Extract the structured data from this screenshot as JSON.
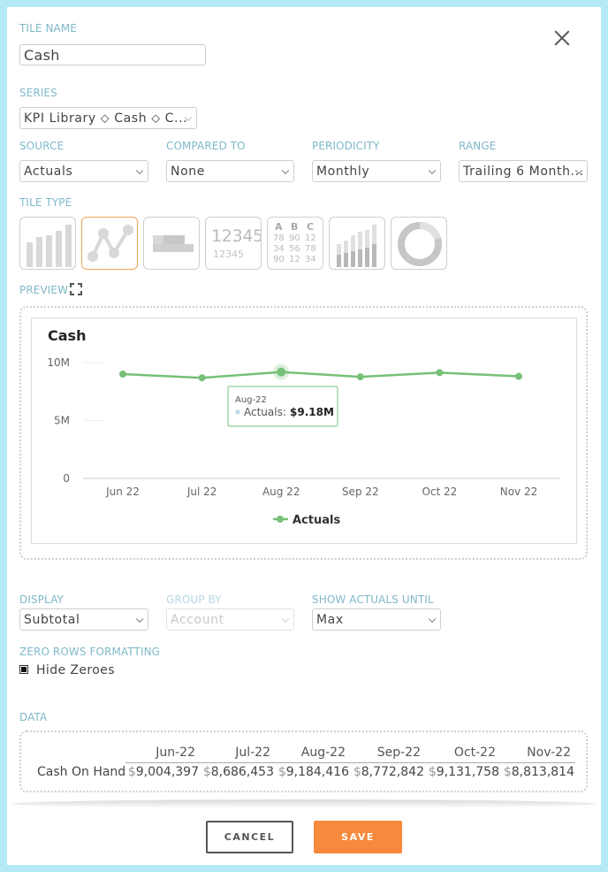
{
  "tile_name": {
    "label": "TILE NAME",
    "value": "Cash"
  },
  "series": {
    "label": "SERIES",
    "value": "KPI Library ⬦ Cash ⬦ C..."
  },
  "source": {
    "label": "SOURCE",
    "value": "Actuals"
  },
  "compared_to": {
    "label": "COMPARED TO",
    "value": "None"
  },
  "periodicity": {
    "label": "PERIODICITY",
    "value": "Monthly"
  },
  "range": {
    "label": "RANGE",
    "value": "Trailing 6 Month..."
  },
  "tile_type": {
    "label": "TILE TYPE",
    "number_tile_big": "12345",
    "number_tile_small": "12345",
    "table_tile": {
      "headers": [
        "A",
        "B",
        "C"
      ],
      "rows": [
        [
          "78",
          "90",
          "12"
        ],
        [
          "34",
          "56",
          "78"
        ],
        [
          "90",
          "12",
          "34"
        ]
      ]
    }
  },
  "preview": {
    "label": "PREVIEW"
  },
  "tooltip": {
    "period": "Aug-22",
    "series": "Actuals:",
    "value": "$9.18M"
  },
  "display": {
    "label": "DISPLAY",
    "value": "Subtotal"
  },
  "group_by": {
    "label": "GROUP BY",
    "value": "Account"
  },
  "show_actuals_until": {
    "label": "SHOW ACTUALS UNTIL",
    "value": "Max"
  },
  "zero_rows": {
    "label": "ZERO ROWS FORMATTING",
    "checkbox_label": "Hide Zeroes",
    "checked": true
  },
  "data_section": {
    "label": "DATA",
    "columns": [
      "Jun-22",
      "Jul-22",
      "Aug-22",
      "Sep-22",
      "Oct-22",
      "Nov-22"
    ],
    "row_label": "Cash On Hand",
    "currency": "$",
    "values": [
      "9,004,397",
      "8,686,453",
      "9,184,416",
      "8,772,842",
      "9,131,758",
      "8,813,814"
    ]
  },
  "buttons": {
    "cancel": "CANCEL",
    "save": "SAVE"
  },
  "colors": {
    "accent": "#f7893d",
    "series_line": "#76c177",
    "label": "#7fb8c9",
    "selected_border": "#f0a35a"
  },
  "icons": [
    "close-icon",
    "chevron-down-icon",
    "expand-icon",
    "checkbox-icon"
  ],
  "chart_data": {
    "type": "line",
    "title": "Cash",
    "categories": [
      "Jun 22",
      "Jul 22",
      "Aug 22",
      "Sep 22",
      "Oct 22",
      "Nov 22"
    ],
    "series": [
      {
        "name": "Actuals",
        "values": [
          9004397,
          8686453,
          9184416,
          8772842,
          9131758,
          8813814
        ]
      }
    ],
    "ylim": [
      0,
      10000000
    ],
    "yticks": [
      0,
      5000000,
      10000000
    ],
    "ytick_labels": [
      "0",
      "5M",
      "10M"
    ],
    "grid": true,
    "legend": "bottom"
  }
}
